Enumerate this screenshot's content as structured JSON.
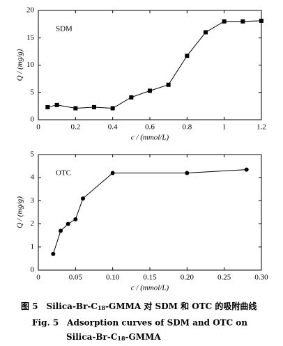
{
  "chart_data": [
    {
      "type": "line",
      "xlabel": "c / (mmol/L)",
      "ylabel": "Q / (mg/g)",
      "xlim": [
        0,
        1.2
      ],
      "ylim": [
        0,
        20
      ],
      "xticks": [
        0,
        0.2,
        0.4,
        0.6,
        0.8,
        1.0,
        1.2
      ],
      "yticks": [
        0,
        5,
        10,
        15,
        20
      ],
      "series": [
        {
          "name": "SDM",
          "color": "#000000",
          "marker": "square",
          "x": [
            0.05,
            0.1,
            0.2,
            0.3,
            0.4,
            0.5,
            0.6,
            0.7,
            0.8,
            0.9,
            1.0,
            1.1,
            1.2
          ],
          "values": [
            2.3,
            2.7,
            2.1,
            2.3,
            2.1,
            4.1,
            5.3,
            6.4,
            11.7,
            16,
            18,
            18,
            18.1
          ]
        }
      ]
    },
    {
      "type": "line",
      "xlabel": "c / (mmol/L)",
      "ylabel": "Q / (mg/g)",
      "xlim": [
        0,
        0.3
      ],
      "ylim": [
        0,
        5
      ],
      "xticks": [
        0,
        0.05,
        {
          "value": 0.1,
          "label": "0.10"
        },
        0.15,
        {
          "value": 0.2,
          "label": "0.20"
        },
        0.25,
        {
          "value": 0.3,
          "label": "0.30"
        }
      ],
      "yticks": [
        0,
        1,
        2,
        3,
        4,
        5
      ],
      "series": [
        {
          "name": "OTC",
          "color": "#000000",
          "marker": "circle",
          "x": [
            0.02,
            0.03,
            0.04,
            0.05,
            0.06,
            0.1,
            0.2,
            0.28
          ],
          "values": [
            0.7,
            1.7,
            2.0,
            2.2,
            3.1,
            4.2,
            4.2,
            4.35
          ]
        }
      ]
    }
  ],
  "caption": {
    "zh": [
      "图 5　Silica-Br-C",
      "18",
      "-GMMA 对 SDM 和 OTC 的吸附曲线"
    ],
    "en1": "Fig. 5　Adsorption curves of SDM and OTC on",
    "en2": [
      "Silica-Br-C",
      "18",
      "-GMMA"
    ]
  }
}
